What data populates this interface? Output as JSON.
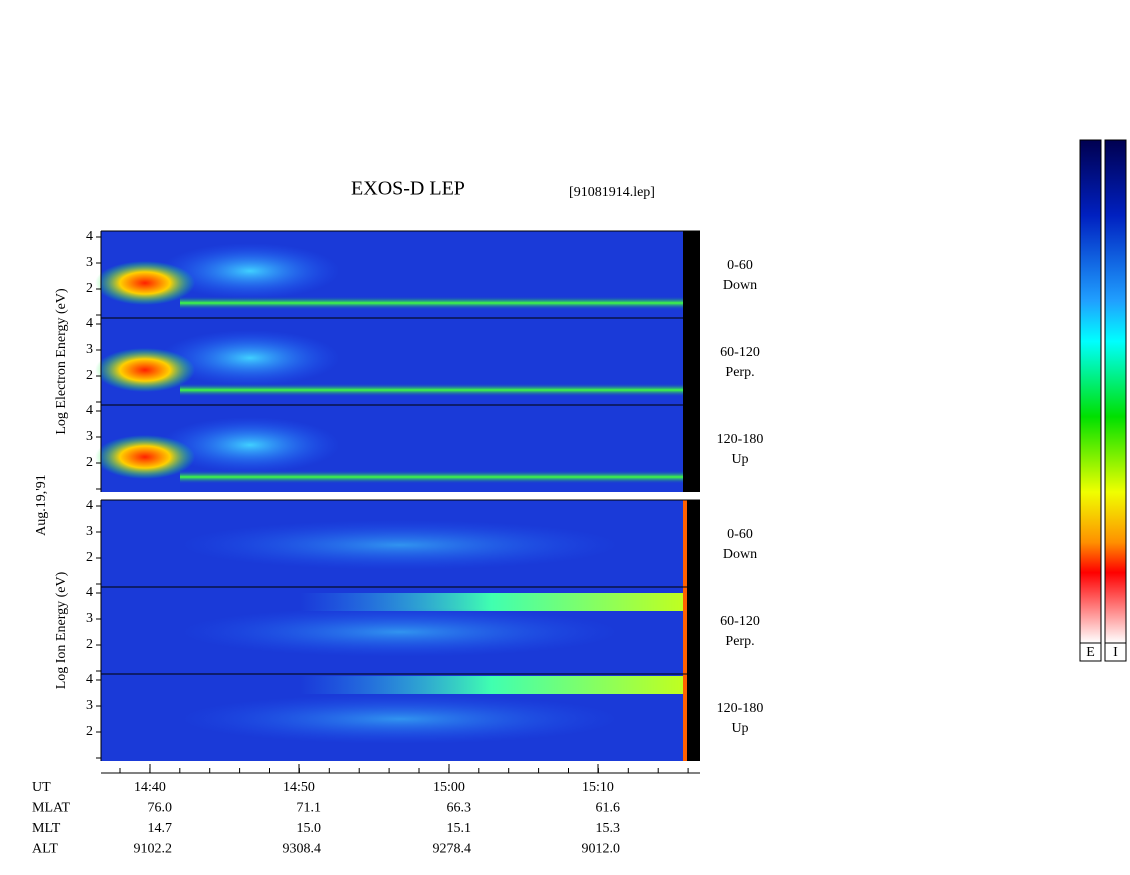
{
  "title": "EXOS-D LEP",
  "file": "[91081914.lep]",
  "date_label": "Aug.19,'91",
  "yticks": [
    2,
    3,
    4
  ],
  "groups": [
    {
      "axis_label": "Log Electron Energy (eV)",
      "panels": [
        {
          "angle": "0-60",
          "direction": "Down"
        },
        {
          "angle": "60-120",
          "direction": "Perp."
        },
        {
          "angle": "120-180",
          "direction": "Up"
        }
      ]
    },
    {
      "axis_label": "Log Ion Energy (eV)",
      "panels": [
        {
          "angle": "0-60",
          "direction": "Down"
        },
        {
          "angle": "60-120",
          "direction": "Perp."
        },
        {
          "angle": "120-180",
          "direction": "Up"
        }
      ]
    }
  ],
  "footer": {
    "rows": [
      {
        "label": "UT",
        "values": [
          "14:40",
          "14:50",
          "15:00",
          "15:10"
        ]
      },
      {
        "label": "MLAT",
        "values": [
          "76.0",
          "71.1",
          "66.3",
          "61.6"
        ]
      },
      {
        "label": "MLT",
        "values": [
          "14.7",
          "15.0",
          "15.1",
          "15.3"
        ]
      },
      {
        "label": "ALT",
        "values": [
          "9102.2",
          "9308.4",
          "9278.4",
          "9012.0"
        ]
      }
    ]
  },
  "colorbars": [
    "E",
    "I"
  ]
}
